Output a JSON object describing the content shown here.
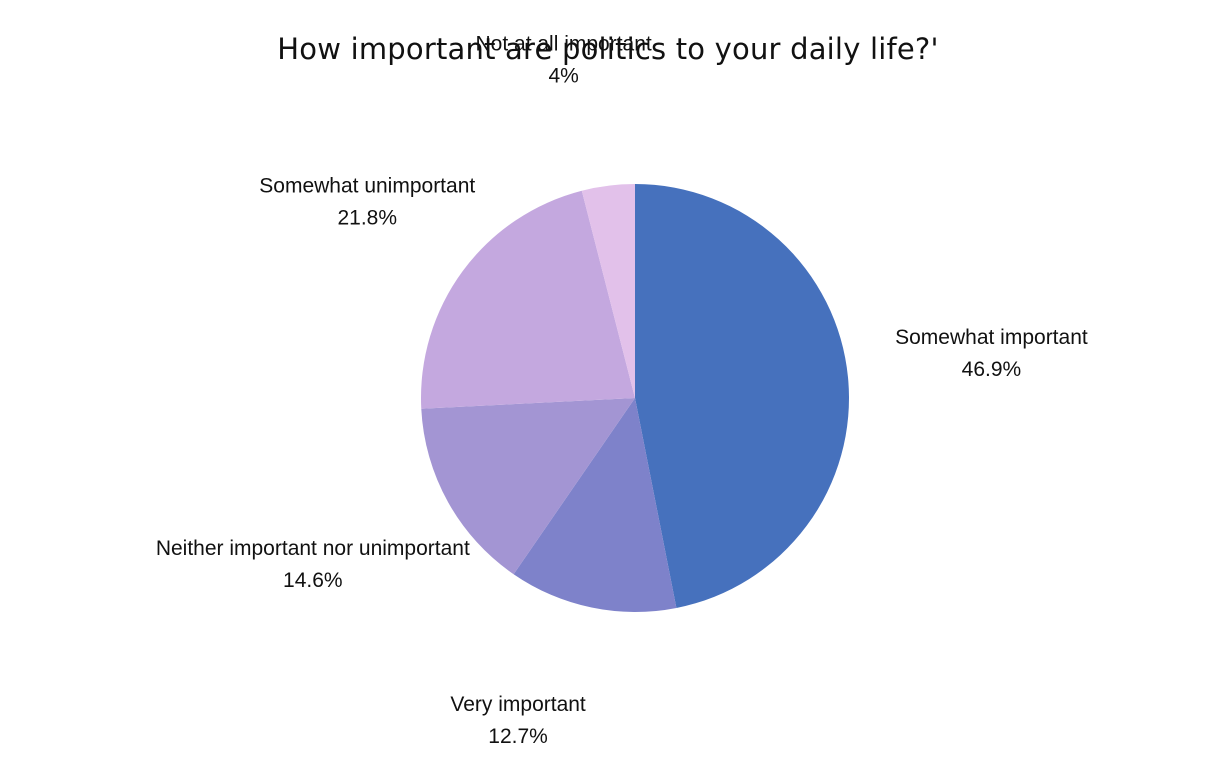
{
  "chart_data": {
    "type": "pie",
    "title": "How important are politics to your daily life?'",
    "start_angle_deg": 0,
    "direction": "clockwise",
    "slices": [
      {
        "label": "Somewhat important",
        "value": 46.9,
        "value_label": "46.9%",
        "color": "#4671bd"
      },
      {
        "label": "Very important",
        "value": 12.7,
        "value_label": "12.7%",
        "color": "#7e82ca"
      },
      {
        "label": "Neither important nor unimportant",
        "value": 14.6,
        "value_label": "14.6%",
        "color": "#a395d3"
      },
      {
        "label": "Somewhat unimportant",
        "value": 21.8,
        "value_label": "21.8%",
        "color": "#c4a8df"
      },
      {
        "label": "Not at all important",
        "value": 4,
        "value_label": "4%",
        "color": "#e2c1ea"
      }
    ]
  }
}
